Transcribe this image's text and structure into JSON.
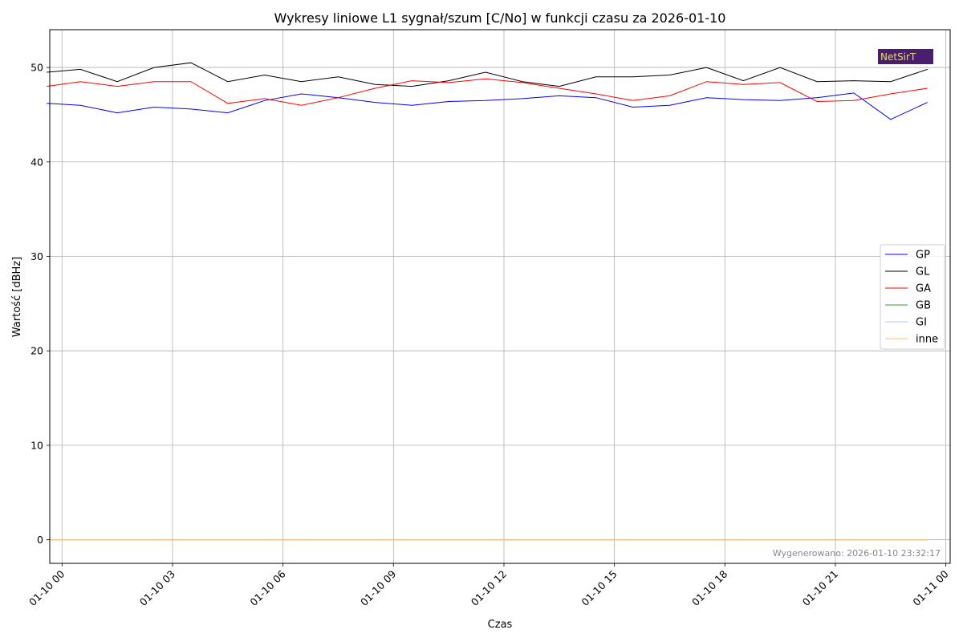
{
  "chart_data": {
    "type": "line",
    "title": "Wykresy liniowe L1 sygnał/szum [C/No] w funkcji czasu za 2026-01-10",
    "xlabel": "Czas",
    "ylabel": "Wartość [dBHz]",
    "x_range": [
      "2026-01-09T23:40",
      "2026-01-11T00:07"
    ],
    "ylim": [
      -2.5,
      54
    ],
    "y_ticks": [
      0,
      10,
      20,
      30,
      40,
      50
    ],
    "x_ticks": [
      {
        "t": "2026-01-10T00:00",
        "label": "01-10 00"
      },
      {
        "t": "2026-01-10T03:00",
        "label": "01-10 03"
      },
      {
        "t": "2026-01-10T06:00",
        "label": "01-10 06"
      },
      {
        "t": "2026-01-10T09:00",
        "label": "01-10 09"
      },
      {
        "t": "2026-01-10T12:00",
        "label": "01-10 12"
      },
      {
        "t": "2026-01-10T15:00",
        "label": "01-10 15"
      },
      {
        "t": "2026-01-10T18:00",
        "label": "01-10 18"
      },
      {
        "t": "2026-01-10T21:00",
        "label": "01-10 21"
      },
      {
        "t": "2026-01-11T00:00",
        "label": "01-11 00"
      }
    ],
    "grid": true,
    "legend_position": "right-middle",
    "x": [
      "2026-01-09T23:35",
      "2026-01-10T00:30",
      "2026-01-10T01:30",
      "2026-01-10T02:30",
      "2026-01-10T03:30",
      "2026-01-10T04:30",
      "2026-01-10T05:30",
      "2026-01-10T06:30",
      "2026-01-10T07:30",
      "2026-01-10T08:30",
      "2026-01-10T09:30",
      "2026-01-10T10:30",
      "2026-01-10T11:30",
      "2026-01-10T12:30",
      "2026-01-10T13:30",
      "2026-01-10T14:30",
      "2026-01-10T15:30",
      "2026-01-10T16:30",
      "2026-01-10T17:30",
      "2026-01-10T18:30",
      "2026-01-10T19:30",
      "2026-01-10T20:30",
      "2026-01-10T21:30",
      "2026-01-10T22:30",
      "2026-01-10T23:30"
    ],
    "series": [
      {
        "name": "GP",
        "color": "#0000ff",
        "values": [
          46.2,
          46.0,
          45.2,
          45.8,
          45.6,
          45.2,
          46.5,
          47.2,
          46.8,
          46.3,
          46.0,
          46.4,
          46.5,
          46.7,
          47.0,
          46.8,
          45.8,
          46.0,
          46.8,
          46.6,
          46.5,
          46.8,
          47.3,
          44.5,
          46.3
        ]
      },
      {
        "name": "GL",
        "color": "#000000",
        "values": [
          49.5,
          49.8,
          48.5,
          50.0,
          50.5,
          48.5,
          49.2,
          48.5,
          49.0,
          48.2,
          48.0,
          48.6,
          49.5,
          48.5,
          48.0,
          49.0,
          49.0,
          49.2,
          50.0,
          48.6,
          50.0,
          48.5,
          48.6,
          48.5,
          49.8
        ]
      },
      {
        "name": "GA",
        "color": "#ff0000",
        "values": [
          48.0,
          48.5,
          48.0,
          48.5,
          48.5,
          46.2,
          46.7,
          46.0,
          46.8,
          47.8,
          48.6,
          48.4,
          48.8,
          48.4,
          47.8,
          47.2,
          46.5,
          47.0,
          48.5,
          48.2,
          48.4,
          46.4,
          46.5,
          47.2,
          47.8
        ]
      },
      {
        "name": "GB",
        "color": "#2ca02c",
        "values": [
          0,
          0,
          0,
          0,
          0,
          0,
          0,
          0,
          0,
          0,
          0,
          0,
          0,
          0,
          0,
          0,
          0,
          0,
          0,
          0,
          0,
          0,
          0,
          0,
          0
        ]
      },
      {
        "name": "GI",
        "color": "#aec7e8",
        "values": [
          0,
          0,
          0,
          0,
          0,
          0,
          0,
          0,
          0,
          0,
          0,
          0,
          0,
          0,
          0,
          0,
          0,
          0,
          0,
          0,
          0,
          0,
          0,
          0,
          0
        ]
      },
      {
        "name": "inne",
        "color": "#ffbb78",
        "values": [
          0,
          0,
          0,
          0,
          0,
          0,
          0,
          0,
          0,
          0,
          0,
          0,
          0,
          0,
          0,
          0,
          0,
          0,
          0,
          0,
          0,
          0,
          0,
          0,
          0
        ]
      }
    ],
    "annotation": "Wygenerowano: 2026-01-10 23:32:17",
    "logo": {
      "text": "NetSirT",
      "background": "#4b1d6e",
      "color": "#e0e070"
    }
  }
}
